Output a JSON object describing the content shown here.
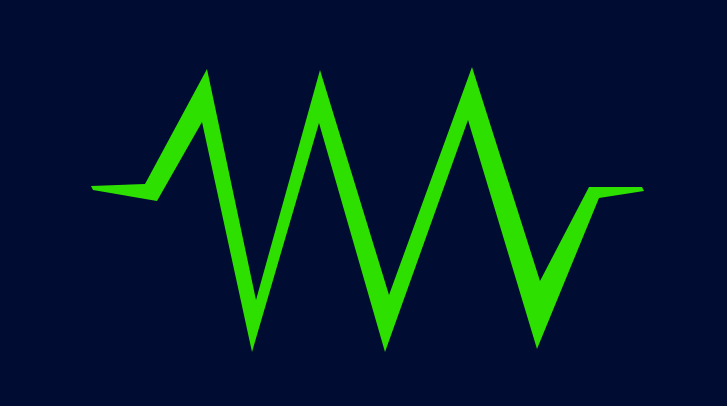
{
  "graphic": {
    "icon": "zigzag-waveform-icon",
    "colors": {
      "background": "#000c31",
      "stroke": "#2ee000"
    }
  }
}
